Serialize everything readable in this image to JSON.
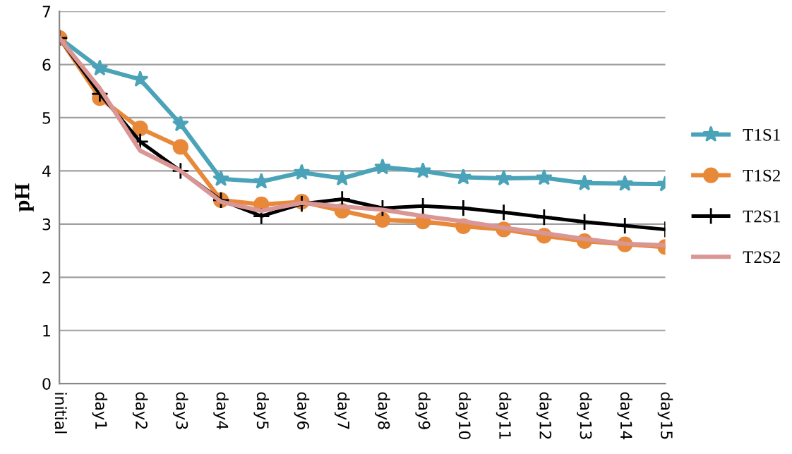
{
  "chart_data": {
    "type": "line",
    "ylabel": "pH",
    "categories": [
      "initial",
      "day1",
      "day2",
      "day3",
      "day4",
      "day5",
      "day6",
      "day7",
      "day8",
      "day9",
      "day10",
      "day11",
      "day12",
      "day13",
      "day14",
      "day15"
    ],
    "series": [
      {
        "name": "T1S1",
        "color": "#4aa3b8",
        "marker": "star",
        "values": [
          6.5,
          5.93,
          5.72,
          4.88,
          3.85,
          3.8,
          3.97,
          3.86,
          4.07,
          4.0,
          3.88,
          3.86,
          3.87,
          3.77,
          3.76,
          3.75
        ]
      },
      {
        "name": "T1S2",
        "color": "#e8893a",
        "marker": "circle",
        "values": [
          6.5,
          5.37,
          4.8,
          4.45,
          3.45,
          3.37,
          3.42,
          3.25,
          3.08,
          3.05,
          2.96,
          2.9,
          2.78,
          2.68,
          2.62,
          2.57
        ]
      },
      {
        "name": "T2S1",
        "color": "#000000",
        "marker": "cross",
        "values": [
          6.5,
          5.45,
          4.55,
          4.0,
          3.45,
          3.15,
          3.38,
          3.47,
          3.3,
          3.34,
          3.3,
          3.22,
          3.13,
          3.04,
          2.97,
          2.9
        ]
      },
      {
        "name": "T2S2",
        "color": "#d99694",
        "marker": "none",
        "values": [
          6.5,
          5.55,
          4.38,
          4.0,
          3.42,
          3.25,
          3.4,
          3.33,
          3.27,
          3.15,
          3.05,
          2.93,
          2.83,
          2.72,
          2.63,
          2.6
        ]
      }
    ],
    "ylim": [
      0,
      7
    ],
    "yticks": [
      0,
      1,
      2,
      3,
      4,
      5,
      6,
      7
    ],
    "grid": "y",
    "legend": "right"
  }
}
